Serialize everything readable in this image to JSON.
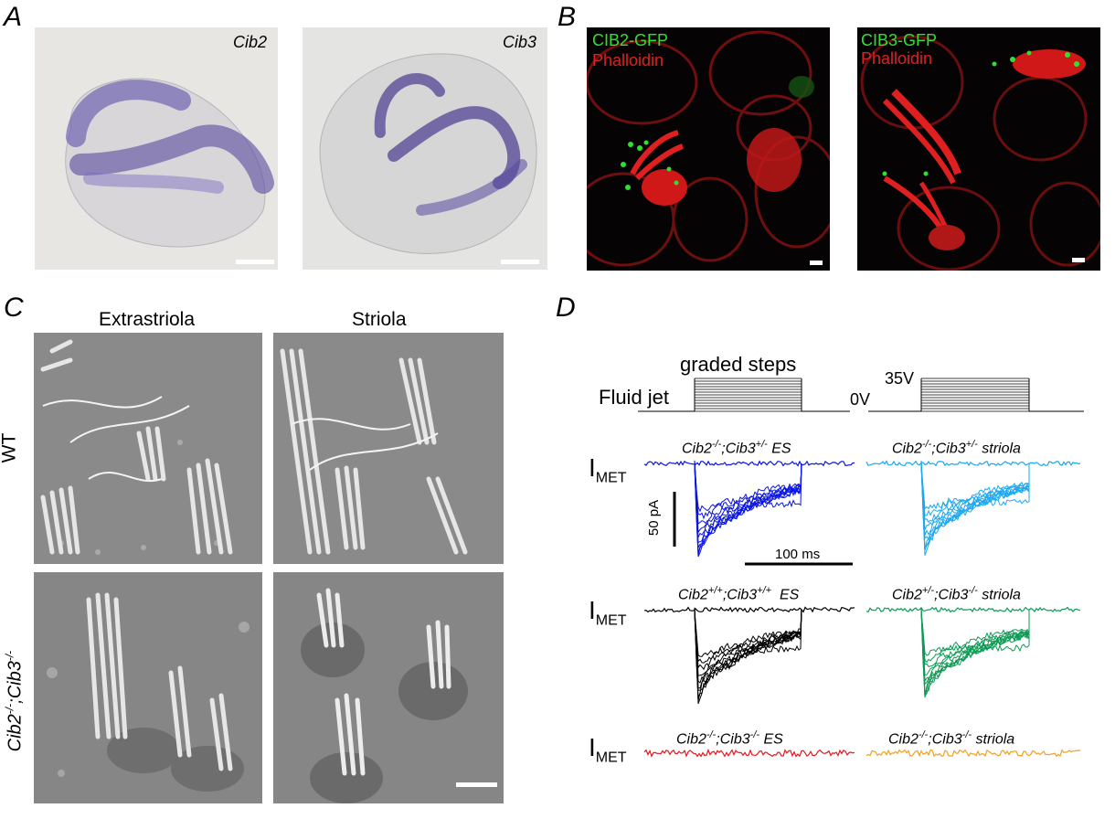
{
  "panels": {
    "A": {
      "letter": "A",
      "left_label": "Cib2",
      "right_label": "Cib3"
    },
    "B": {
      "letter": "B",
      "left": {
        "green": "CIB2-GFP",
        "red": "Phalloidin"
      },
      "right": {
        "green": "CIB3-GFP",
        "red": "Phalloidin"
      }
    },
    "C": {
      "letter": "C",
      "col1": "Extrastriola",
      "col2": "Striola",
      "row1": "WT",
      "row2_base1": "Cib2",
      "row2_sup1": "-/-",
      "row2_mid": ";Cib3",
      "row2_sup2": "-/-"
    },
    "D": {
      "letter": "D",
      "stim_title": "graded steps",
      "fluid_jet": "Fluid jet",
      "v0": "0V",
      "v35": "35V",
      "imet_main": "I",
      "imet_sub": "MET",
      "scale_y": "50 pA",
      "scale_x": "100 ms",
      "traces": [
        {
          "parts": [
            "Cib2",
            "-/-",
            ";Cib3",
            "+/-",
            " ES"
          ],
          "color": "#0a14e6"
        },
        {
          "parts": [
            "Cib2",
            "-/-",
            ";Cib3",
            "+/-",
            " striola"
          ],
          "color": "#1aa8f0"
        },
        {
          "parts": [
            "Cib2",
            "+/+",
            ";Cib3",
            "+/+",
            "  ES"
          ],
          "color": "#000000"
        },
        {
          "parts": [
            "Cib2",
            "+/-",
            ";Cib3",
            "-/-",
            " striola"
          ],
          "color": "#0e9a55"
        },
        {
          "parts": [
            "Cib2",
            "-/-",
            ";Cib3",
            "-/-",
            " ES"
          ],
          "color": "#e8141e"
        },
        {
          "parts": [
            "Cib2",
            "-/-",
            ";Cib3",
            "-/-",
            " striola"
          ],
          "color": "#f0a020"
        }
      ]
    }
  },
  "colors": {
    "ish_stain": "#5a4aa0",
    "phalloidin": "#e02020",
    "gfp": "#30e030",
    "sem": "#8a8a8a"
  }
}
